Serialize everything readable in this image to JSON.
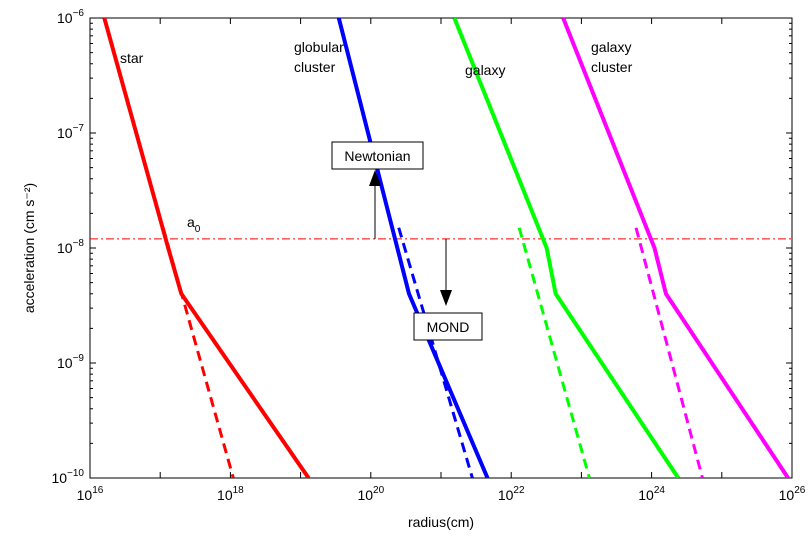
{
  "chart_data": {
    "type": "line",
    "title": "",
    "xlabel": "radius(cm)",
    "ylabel": "acceleration (cm s⁻²)",
    "x_scale": "log",
    "y_scale": "log",
    "xlim": [
      1e+16,
      1e+26
    ],
    "ylim": [
      1e-10,
      1e-06
    ],
    "grid": false,
    "x_ticks": [
      {
        "base": "10",
        "exp": "16",
        "value": 1e+16
      },
      {
        "base": "10",
        "exp": "18",
        "value": 1e+18
      },
      {
        "base": "10",
        "exp": "20",
        "value": 1e+20
      },
      {
        "base": "10",
        "exp": "22",
        "value": 1e+22
      },
      {
        "base": "10",
        "exp": "24",
        "value": 1e+24
      },
      {
        "base": "10",
        "exp": "26",
        "value": 1e+26
      }
    ],
    "y_ticks": [
      {
        "base": "10",
        "exp": "−6",
        "value": 1e-06
      },
      {
        "base": "10",
        "exp": "−7",
        "value": 1e-07
      },
      {
        "base": "10",
        "exp": "−8",
        "value": 1e-08
      },
      {
        "base": "10",
        "exp": "−9",
        "value": 1e-09
      },
      {
        "base": "10",
        "exp": "−10",
        "value": 1e-10
      }
    ],
    "a0": 1.2e-08,
    "series": [
      {
        "name": "star",
        "color": "#ff0000",
        "mond": {
          "x": [
            1.6e+16,
            1.3e+17,
            2e+17,
            1.3e+19
          ],
          "y": [
            1e-06,
            1e-08,
            4e-09,
            1e-10
          ]
        },
        "newtonian": {
          "x": [
            1.1e+17,
            1.1e+18
          ],
          "y": [
            1.5e-08,
            1e-10
          ]
        }
      },
      {
        "name": "globular cluster",
        "color": "#0000ff",
        "mond": {
          "x": [
            3.5e+19,
            3.5e+20,
            4.6e+21
          ],
          "y": [
            1e-06,
            4e-09,
            1e-10
          ]
        },
        "newtonian": {
          "x": [
            2.5e+20,
            2.8e+21
          ],
          "y": [
            1.5e-08,
            1e-10
          ]
        }
      },
      {
        "name": "galaxy",
        "color": "#00ff00",
        "mond": {
          "x": [
            1.55e+21,
            3.2e+22,
            4.3e+22,
            2.4e+24
          ],
          "y": [
            1e-06,
            1e-08,
            4e-09,
            1e-10
          ]
        },
        "newtonian": {
          "x": [
            1.3e+22,
            1.3e+23
          ],
          "y": [
            1.5e-08,
            1e-10
          ]
        }
      },
      {
        "name": "galaxy cluster",
        "color": "#ff00ff",
        "mond": {
          "x": [
            5.5e+22,
            1.1e+24,
            1.6e+24,
            8.8e+25
          ],
          "y": [
            1e-06,
            1e-08,
            4e-09,
            1e-10
          ]
        },
        "newtonian": {
          "x": [
            6e+23,
            5.3e+24
          ],
          "y": [
            1.5e-08,
            1e-10
          ]
        }
      }
    ],
    "annotations": {
      "star": "star",
      "globular_line1": "globular",
      "globular_line2": "cluster",
      "galaxy": "galaxy",
      "galaxy_cluster_line1": "galaxy",
      "galaxy_cluster_line2": "cluster",
      "a0_base": "a",
      "a0_sub": "0",
      "newtonian": "Newtonian",
      "mond": "MOND"
    },
    "colors": {
      "a0_line": "#ff0000",
      "arrows": "#000000"
    }
  }
}
